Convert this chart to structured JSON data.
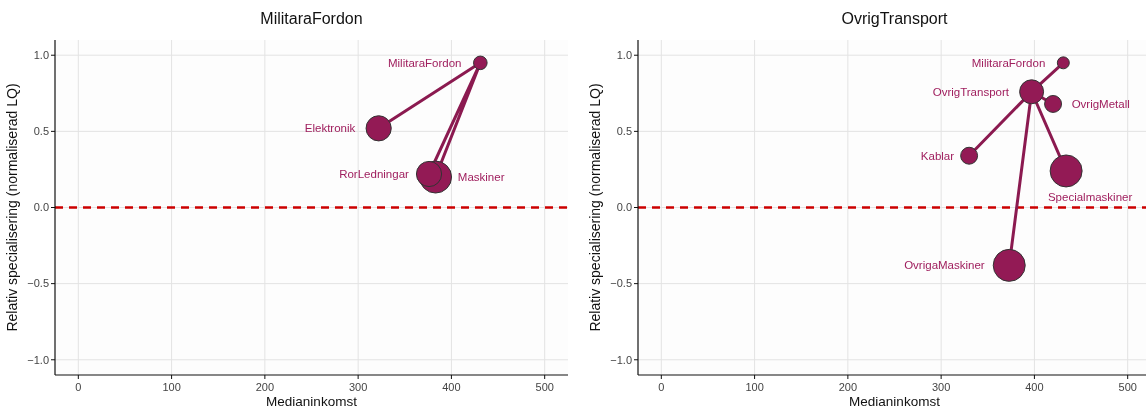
{
  "chart_data": [
    {
      "type": "bubble",
      "title": "MilitaraFordon",
      "xlabel": "Medianinkomst",
      "ylabel": "Relativ specialisering (normaliserad LQ)",
      "xlim": [
        -25,
        525
      ],
      "ylim": [
        -1.1,
        1.1
      ],
      "xticks": [
        0,
        100,
        200,
        300,
        400,
        500
      ],
      "yticks": [
        {
          "value": -1,
          "label": "−1.0"
        },
        {
          "value": -0.5,
          "label": "−0.5"
        },
        {
          "value": 0,
          "label": "0.0"
        },
        {
          "value": 0.5,
          "label": "0.5"
        },
        {
          "value": 1,
          "label": "1.0"
        }
      ],
      "grid": true,
      "ref_lines": [
        {
          "axis": "y",
          "value": 0,
          "color": "#cc0000",
          "line_style": "dashed"
        }
      ],
      "series": [
        {
          "type": "line",
          "color": "#8b1a50",
          "x": [
            322,
            431,
            376,
            431,
            383
          ],
          "values": [
            0.52,
            0.95,
            0.22,
            0.95,
            0.2
          ]
        },
        {
          "color": "#931a55",
          "x": [
            431,
            322,
            383,
            376
          ],
          "values": [
            0.95,
            0.52,
            0.2,
            0.22
          ],
          "sizes": [
            0.18,
            0.62,
            1,
            0.62
          ]
        }
      ],
      "annotations": [
        {
          "text": "MilitaraFordon",
          "x": 431,
          "y": 0.95
        },
        {
          "text": "Elektronik",
          "x": 322,
          "y": 0.52
        },
        {
          "text": "RorLedningar",
          "x": 376,
          "y": 0.22
        },
        {
          "text": "Maskiner",
          "x": 383,
          "y": 0.2
        }
      ]
    },
    {
      "type": "bubble",
      "title": "OvrigTransport",
      "xlabel": "Medianinkomst",
      "ylabel": "Relativ specialisering (normaliserad LQ)",
      "xlim": [
        -25,
        525
      ],
      "ylim": [
        -1.1,
        1.1
      ],
      "xticks": [
        0,
        100,
        200,
        300,
        400,
        500
      ],
      "yticks": [
        {
          "value": -1,
          "label": "−1.0"
        },
        {
          "value": -0.5,
          "label": "−0.5"
        },
        {
          "value": 0,
          "label": "0.0"
        },
        {
          "value": 0.5,
          "label": "0.5"
        },
        {
          "value": 1,
          "label": "1.0"
        }
      ],
      "grid": true,
      "ref_lines": [
        {
          "axis": "y",
          "value": 0,
          "color": "#cc0000",
          "line_style": "dashed"
        }
      ],
      "series": [
        {
          "type": "line",
          "color": "#8b1a50",
          "x": [
            431,
            397,
            330,
            397,
            434,
            397,
            373,
            397,
            420
          ],
          "values": [
            0.95,
            0.76,
            0.34,
            0.76,
            0.24,
            0.76,
            -0.38,
            0.76,
            0.68
          ]
        },
        {
          "color": "#931a55",
          "x": [
            431,
            397,
            420,
            330,
            434,
            373
          ],
          "values": [
            0.95,
            0.76,
            0.68,
            0.34,
            0.24,
            -0.38
          ],
          "sizes": [
            0.14,
            0.56,
            0.28,
            0.28,
            1,
            1
          ]
        }
      ],
      "annotations": [
        {
          "text": "MilitaraFordon",
          "x": 431,
          "y": 0.95
        },
        {
          "text": "OvrigTransport",
          "x": 397,
          "y": 0.76
        },
        {
          "text": "OvrigMetall",
          "x": 420,
          "y": 0.68
        },
        {
          "text": "Kablar",
          "x": 330,
          "y": 0.34
        },
        {
          "text": "Specialmaskiner",
          "x": 434,
          "y": 0.24
        },
        {
          "text": "OvrigaMaskiner",
          "x": 373,
          "y": -0.38
        }
      ]
    }
  ]
}
